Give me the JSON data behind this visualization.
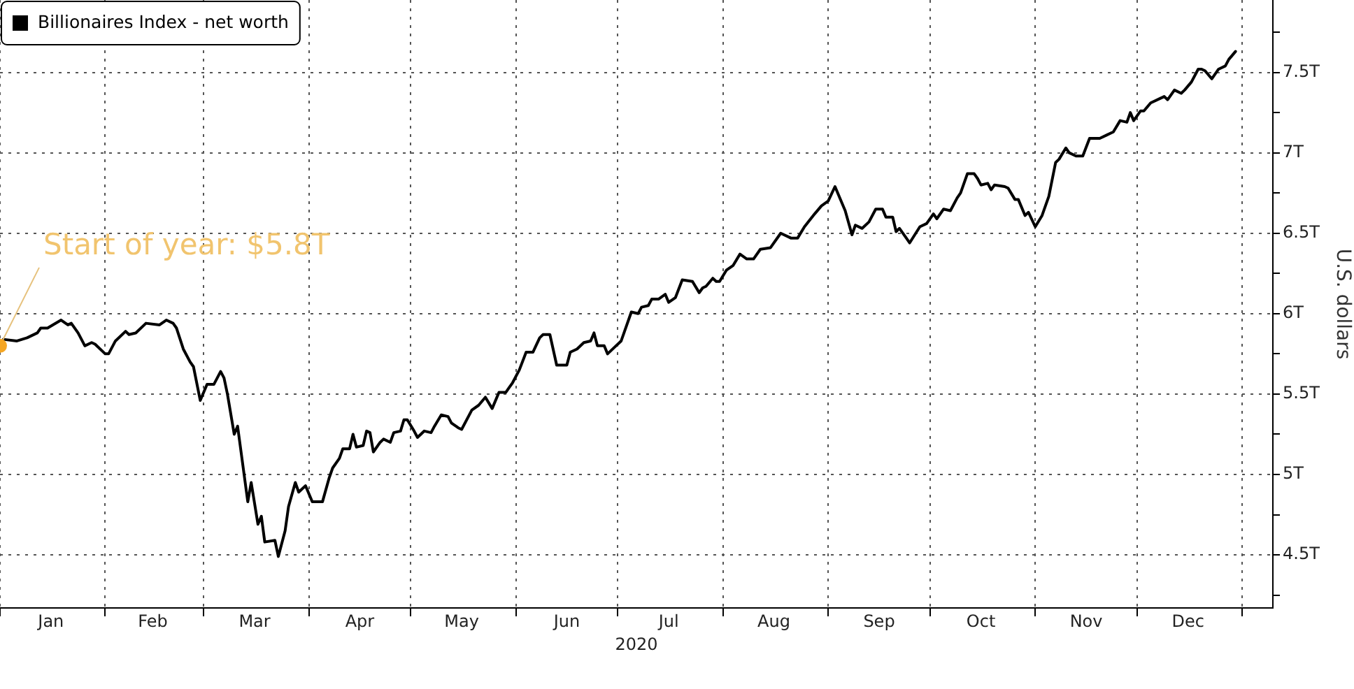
{
  "chart_data": {
    "type": "line",
    "xlabel": "2020",
    "ylabel": "U.S. dollars",
    "annotations": [
      {
        "text": "Start of year: $5.8T",
        "x": "2020-01-01",
        "y": 5.8
      }
    ],
    "series": [
      {
        "name": "Billionaires Index - net worth",
        "color": "#000000",
        "x": [
          "2020-01-02",
          "2020-01-06",
          "2020-01-09",
          "2020-01-12",
          "2020-01-13",
          "2020-01-15",
          "2020-01-19",
          "2020-01-21",
          "2020-01-22",
          "2020-01-24",
          "2020-01-26",
          "2020-01-28",
          "2020-01-29",
          "2020-02-01",
          "2020-02-02",
          "2020-02-04",
          "2020-02-07",
          "2020-02-08",
          "2020-02-10",
          "2020-02-13",
          "2020-02-17",
          "2020-02-19",
          "2020-02-21",
          "2020-02-22",
          "2020-02-24",
          "2020-02-26",
          "2020-02-27",
          "2020-02-29",
          "2020-03-02",
          "2020-03-04",
          "2020-03-06",
          "2020-03-07",
          "2020-03-08",
          "2020-03-10",
          "2020-03-11",
          "2020-03-14",
          "2020-03-15",
          "2020-03-17",
          "2020-03-18",
          "2020-03-19",
          "2020-03-22",
          "2020-03-23",
          "2020-03-25",
          "2020-03-26",
          "2020-03-28",
          "2020-03-29",
          "2020-03-31",
          "2020-04-02",
          "2020-04-03",
          "2020-04-05",
          "2020-04-07",
          "2020-04-08",
          "2020-04-10",
          "2020-04-11",
          "2020-04-13",
          "2020-04-14",
          "2020-04-15",
          "2020-04-17",
          "2020-04-18",
          "2020-04-19",
          "2020-04-20",
          "2020-04-22",
          "2020-04-23",
          "2020-04-25",
          "2020-04-26",
          "2020-04-28",
          "2020-04-29",
          "2020-04-30",
          "2020-05-02",
          "2020-05-03",
          "2020-05-05",
          "2020-05-07",
          "2020-05-08",
          "2020-05-10",
          "2020-05-12",
          "2020-05-13",
          "2020-05-15",
          "2020-05-16",
          "2020-05-19",
          "2020-05-21",
          "2020-05-23",
          "2020-05-25",
          "2020-05-27",
          "2020-05-29",
          "2020-05-30",
          "2020-05-31",
          "2020-06-02",
          "2020-06-04",
          "2020-06-06",
          "2020-06-08",
          "2020-06-09",
          "2020-06-11",
          "2020-06-13",
          "2020-06-16",
          "2020-06-17",
          "2020-06-19",
          "2020-06-21",
          "2020-06-23",
          "2020-06-24",
          "2020-06-25",
          "2020-06-27",
          "2020-06-28",
          "2020-06-30",
          "2020-07-02",
          "2020-07-03",
          "2020-07-05",
          "2020-07-07",
          "2020-07-08",
          "2020-07-10",
          "2020-07-11",
          "2020-07-13",
          "2020-07-15",
          "2020-07-16",
          "2020-07-18",
          "2020-07-20",
          "2020-07-23",
          "2020-07-25",
          "2020-07-26",
          "2020-07-27",
          "2020-07-29",
          "2020-07-30",
          "2020-07-31",
          "2020-08-02",
          "2020-08-04",
          "2020-08-06",
          "2020-08-08",
          "2020-08-10",
          "2020-08-12",
          "2020-08-15",
          "2020-08-18",
          "2020-08-21",
          "2020-08-23",
          "2020-08-25",
          "2020-08-28",
          "2020-08-30",
          "2020-09-01",
          "2020-09-03",
          "2020-09-06",
          "2020-09-08",
          "2020-09-09",
          "2020-09-11",
          "2020-09-13",
          "2020-09-15",
          "2020-09-17",
          "2020-09-18",
          "2020-09-20",
          "2020-09-21",
          "2020-09-22",
          "2020-09-24",
          "2020-09-25",
          "2020-09-28",
          "2020-09-30",
          "2020-10-02",
          "2020-10-03",
          "2020-10-05",
          "2020-10-07",
          "2020-10-09",
          "2020-10-10",
          "2020-10-12",
          "2020-10-14",
          "2020-10-15",
          "2020-10-16",
          "2020-10-18",
          "2020-10-19",
          "2020-10-20",
          "2020-10-23",
          "2020-10-24",
          "2020-10-26",
          "2020-10-27",
          "2020-10-29",
          "2020-10-30",
          "2020-11-01",
          "2020-11-03",
          "2020-11-05",
          "2020-11-07",
          "2020-11-08",
          "2020-11-10",
          "2020-11-11",
          "2020-11-13",
          "2020-11-15",
          "2020-11-17",
          "2020-11-20",
          "2020-11-22",
          "2020-11-24",
          "2020-11-26",
          "2020-11-28",
          "2020-11-29",
          "2020-11-30",
          "2020-12-02",
          "2020-12-03",
          "2020-12-05",
          "2020-12-08",
          "2020-12-09",
          "2020-12-10",
          "2020-12-12",
          "2020-12-14",
          "2020-12-15",
          "2020-12-17",
          "2020-12-19",
          "2020-12-20",
          "2020-12-21",
          "2020-12-23",
          "2020-12-25",
          "2020-12-27",
          "2020-12-28",
          "2020-12-30"
        ],
        "values": [
          5.84,
          5.83,
          5.85,
          5.88,
          5.91,
          5.91,
          5.96,
          5.93,
          5.94,
          5.88,
          5.8,
          5.82,
          5.81,
          5.75,
          5.75,
          5.83,
          5.89,
          5.87,
          5.88,
          5.94,
          5.93,
          5.96,
          5.94,
          5.91,
          5.78,
          5.7,
          5.67,
          5.46,
          5.56,
          5.56,
          5.64,
          5.6,
          5.5,
          5.25,
          5.3,
          4.83,
          4.95,
          4.69,
          4.74,
          4.58,
          4.59,
          4.49,
          4.65,
          4.8,
          4.95,
          4.89,
          4.93,
          4.83,
          4.83,
          4.83,
          4.98,
          5.04,
          5.1,
          5.16,
          5.16,
          5.25,
          5.17,
          5.18,
          5.27,
          5.26,
          5.14,
          5.2,
          5.22,
          5.2,
          5.26,
          5.27,
          5.34,
          5.34,
          5.27,
          5.23,
          5.27,
          5.26,
          5.3,
          5.37,
          5.36,
          5.32,
          5.29,
          5.28,
          5.4,
          5.43,
          5.48,
          5.41,
          5.51,
          5.51,
          5.54,
          5.57,
          5.65,
          5.76,
          5.76,
          5.85,
          5.87,
          5.87,
          5.68,
          5.68,
          5.76,
          5.78,
          5.82,
          5.83,
          5.88,
          5.8,
          5.8,
          5.75,
          5.79,
          5.83,
          5.89,
          6.01,
          6.0,
          6.04,
          6.05,
          6.09,
          6.09,
          6.12,
          6.07,
          6.1,
          6.21,
          6.2,
          6.13,
          6.16,
          6.17,
          6.22,
          6.2,
          6.2,
          6.27,
          6.3,
          6.37,
          6.34,
          6.34,
          6.4,
          6.41,
          6.5,
          6.47,
          6.47,
          6.54,
          6.62,
          6.67,
          6.7,
          6.79,
          6.64,
          6.49,
          6.55,
          6.53,
          6.57,
          6.65,
          6.65,
          6.6,
          6.6,
          6.51,
          6.53,
          6.47,
          6.44,
          6.54,
          6.56,
          6.62,
          6.59,
          6.65,
          6.64,
          6.72,
          6.75,
          6.87,
          6.87,
          6.84,
          6.8,
          6.81,
          6.77,
          6.8,
          6.79,
          6.78,
          6.71,
          6.71,
          6.61,
          6.63,
          6.54,
          6.61,
          6.73,
          6.94,
          6.96,
          7.03,
          7.0,
          6.98,
          6.98,
          7.09,
          7.09,
          7.11,
          7.13,
          7.2,
          7.19,
          7.25,
          7.2,
          7.26,
          7.26,
          7.31,
          7.34,
          7.35,
          7.33,
          7.39,
          7.37,
          7.39,
          7.44,
          7.52,
          7.52,
          7.51,
          7.46,
          7.52,
          7.54,
          7.58,
          7.63
        ]
      }
    ],
    "xlim": [
      "2020-01-01",
      "2021-01-10"
    ],
    "xticks": [
      {
        "value": "2020-01-01",
        "label": null
      },
      {
        "value": "2020-01-16",
        "label": "Jan"
      },
      {
        "value": "2020-02-01",
        "label": null
      },
      {
        "value": "2020-02-15",
        "label": "Feb"
      },
      {
        "value": "2020-03-01",
        "label": null
      },
      {
        "value": "2020-03-16",
        "label": "Mar"
      },
      {
        "value": "2020-04-01",
        "label": null
      },
      {
        "value": "2020-04-16",
        "label": "Apr"
      },
      {
        "value": "2020-05-01",
        "label": null
      },
      {
        "value": "2020-05-16",
        "label": "May"
      },
      {
        "value": "2020-06-01",
        "label": null
      },
      {
        "value": "2020-06-16",
        "label": "Jun"
      },
      {
        "value": "2020-07-01",
        "label": null
      },
      {
        "value": "2020-07-16",
        "label": "Jul"
      },
      {
        "value": "2020-08-01",
        "label": null
      },
      {
        "value": "2020-08-16",
        "label": "Aug"
      },
      {
        "value": "2020-09-01",
        "label": null
      },
      {
        "value": "2020-09-16",
        "label": "Sep"
      },
      {
        "value": "2020-10-01",
        "label": null
      },
      {
        "value": "2020-10-16",
        "label": "Oct"
      },
      {
        "value": "2020-11-01",
        "label": null
      },
      {
        "value": "2020-11-16",
        "label": "Nov"
      },
      {
        "value": "2020-12-01",
        "label": null
      },
      {
        "value": "2020-12-16",
        "label": "Dec"
      },
      {
        "value": "2021-01-01",
        "label": null
      }
    ],
    "ylim": [
      4.17,
      7.95
    ],
    "yticks": [
      {
        "value": 4.25,
        "label": null
      },
      {
        "value": 4.5,
        "label": "4.5T"
      },
      {
        "value": 4.75,
        "label": null
      },
      {
        "value": 5,
        "label": "5T"
      },
      {
        "value": 5.25,
        "label": null
      },
      {
        "value": 5.5,
        "label": "5.5T"
      },
      {
        "value": 5.75,
        "label": null
      },
      {
        "value": 6,
        "label": "6T"
      },
      {
        "value": 6.25,
        "label": null
      },
      {
        "value": 6.5,
        "label": "6.5T"
      },
      {
        "value": 6.75,
        "label": null
      },
      {
        "value": 7,
        "label": "7T"
      },
      {
        "value": 7.25,
        "label": null
      },
      {
        "value": 7.5,
        "label": "7.5T"
      },
      {
        "value": 7.75,
        "label": null
      }
    ],
    "grid": true,
    "legend": "top left",
    "line_style": "solid"
  }
}
